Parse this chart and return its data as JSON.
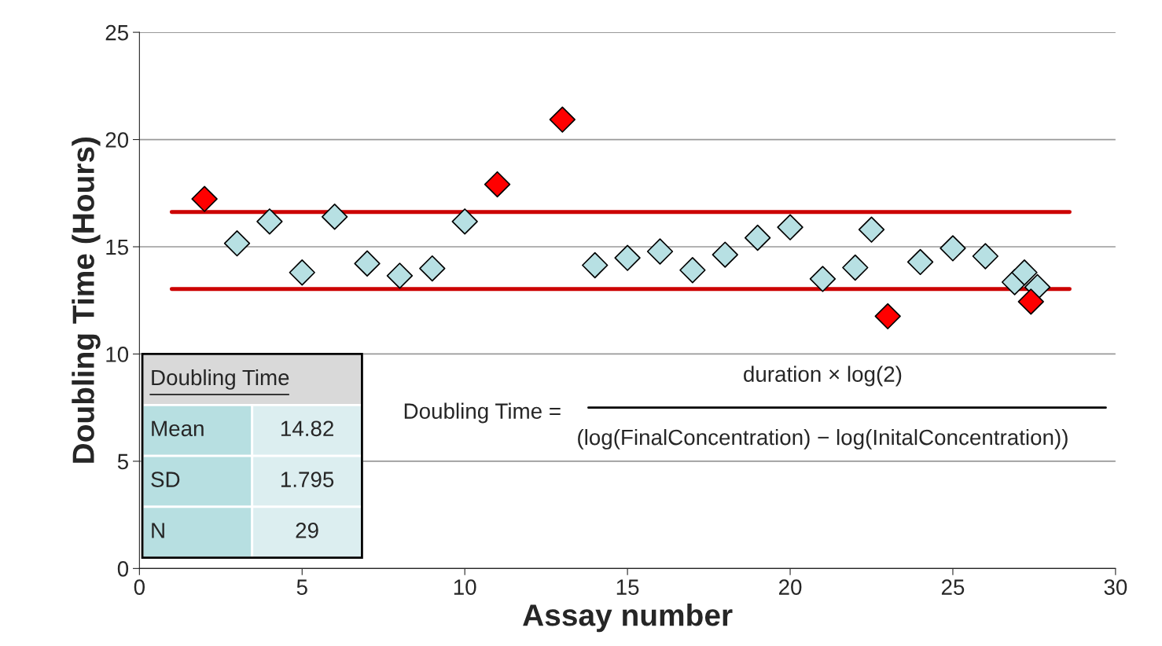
{
  "chart_data": {
    "type": "scatter",
    "xlabel": "Assay number",
    "ylabel": "Doubling Time (Hours)",
    "xlim": [
      0,
      30
    ],
    "xticks": [
      0,
      5,
      10,
      15,
      20,
      25,
      30
    ],
    "ylim": [
      0,
      25
    ],
    "yticks": [
      0,
      5,
      10,
      15,
      20,
      25
    ],
    "grid": "y",
    "marker": "diamond",
    "series": [
      {
        "color": "#b7e0e3",
        "x": [
          3,
          4,
          5,
          6,
          7,
          8,
          9,
          10,
          14,
          15,
          16,
          17,
          18,
          19,
          20,
          21,
          22,
          22.5,
          24,
          25,
          26,
          26.9,
          27.2,
          27.6
        ],
        "values": [
          15.16,
          16.18,
          13.8,
          16.4,
          14.22,
          13.65,
          13.99,
          16.18,
          14.14,
          14.48,
          14.78,
          13.91,
          14.63,
          15.42,
          15.91,
          13.5,
          14.03,
          15.8,
          14.29,
          14.93,
          14.56,
          13.35,
          13.8,
          13.12
        ]
      },
      {
        "color": "#ff0000",
        "x": [
          2,
          11,
          13,
          23,
          27.4
        ],
        "values": [
          17.23,
          17.91,
          20.93,
          11.76,
          12.44
        ]
      }
    ],
    "ref_lines": [
      {
        "axis": "y",
        "value": 16.62,
        "color": "#cc0000"
      },
      {
        "axis": "y",
        "value": 13.03,
        "color": "#cc0000"
      }
    ],
    "annotations": [
      "Doubling Time",
      "Mean",
      "14.82",
      "SD",
      "1.795",
      "N",
      "29",
      "Doubling Time =",
      "duration × log(2)",
      "(log(FinalConcentration) − log(InitalConcentration))"
    ]
  }
}
